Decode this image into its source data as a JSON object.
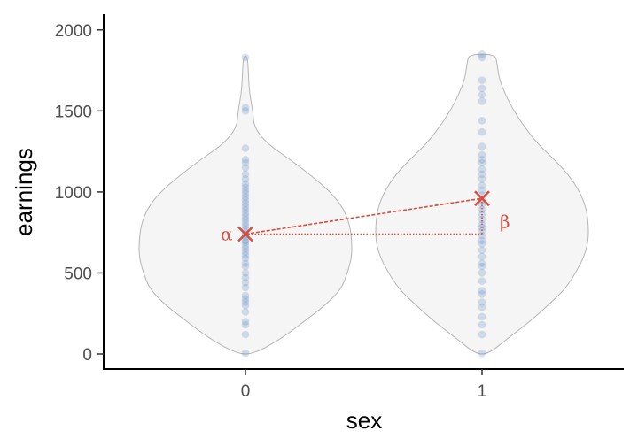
{
  "chart_data": {
    "type": "violin",
    "xlabel": "sex",
    "ylabel": "earnings",
    "categories": [
      "0",
      "1"
    ],
    "ylim": [
      -90,
      2100
    ],
    "y_ticks": [
      0,
      500,
      1000,
      1500,
      2000
    ],
    "grid": false,
    "groups": [
      {
        "category": "0",
        "mean": 740,
        "points": [
          5,
          120,
          180,
          200,
          260,
          300,
          320,
          340,
          360,
          410,
          440,
          470,
          500,
          540,
          560,
          590,
          610,
          630,
          650,
          670,
          690,
          700,
          720,
          735,
          750,
          770,
          790,
          810,
          830,
          850,
          870,
          890,
          910,
          930,
          950,
          970,
          990,
          1010,
          1030,
          1050,
          1080,
          1110,
          1150,
          1180,
          1200,
          1270,
          1500,
          1520,
          1830
        ],
        "density_profile": [
          [
            0,
            0.08
          ],
          [
            100,
            0.35
          ],
          [
            200,
            0.55
          ],
          [
            300,
            0.75
          ],
          [
            400,
            0.9
          ],
          [
            500,
            0.96
          ],
          [
            600,
            1.0
          ],
          [
            700,
            1.0
          ],
          [
            800,
            0.98
          ],
          [
            900,
            0.92
          ],
          [
            1000,
            0.8
          ],
          [
            1100,
            0.62
          ],
          [
            1200,
            0.42
          ],
          [
            1300,
            0.2
          ],
          [
            1400,
            0.08
          ],
          [
            1500,
            0.07
          ],
          [
            1600,
            0.04
          ],
          [
            1700,
            0.03
          ],
          [
            1840,
            0.02
          ]
        ]
      },
      {
        "category": "1",
        "mean": 960,
        "points": [
          5,
          120,
          180,
          230,
          290,
          320,
          370,
          390,
          450,
          500,
          540,
          560,
          600,
          640,
          680,
          700,
          730,
          760,
          780,
          800,
          830,
          860,
          890,
          920,
          950,
          980,
          1010,
          1040,
          1080,
          1110,
          1140,
          1180,
          1200,
          1230,
          1280,
          1370,
          1440,
          1560,
          1600,
          1640,
          1690,
          1830,
          1850
        ],
        "density_profile": [
          [
            0,
            0.06
          ],
          [
            100,
            0.25
          ],
          [
            200,
            0.45
          ],
          [
            300,
            0.62
          ],
          [
            400,
            0.78
          ],
          [
            500,
            0.88
          ],
          [
            600,
            0.96
          ],
          [
            700,
            1.0
          ],
          [
            800,
            1.0
          ],
          [
            900,
            0.98
          ],
          [
            1000,
            0.92
          ],
          [
            1100,
            0.82
          ],
          [
            1200,
            0.68
          ],
          [
            1300,
            0.52
          ],
          [
            1400,
            0.4
          ],
          [
            1500,
            0.3
          ],
          [
            1600,
            0.22
          ],
          [
            1700,
            0.16
          ],
          [
            1800,
            0.14
          ],
          [
            1850,
            0.12
          ]
        ]
      }
    ],
    "annotations": [
      {
        "label": "α",
        "anchor": "group-0-mean"
      },
      {
        "label": "β",
        "anchor": "group-1-mean"
      }
    ],
    "colors": {
      "violin_fill": "#f5f5f5",
      "violin_stroke": "#b5b5b5",
      "points": "#5b87c5",
      "highlight": "#d94c3d",
      "axis": "#000000"
    }
  }
}
